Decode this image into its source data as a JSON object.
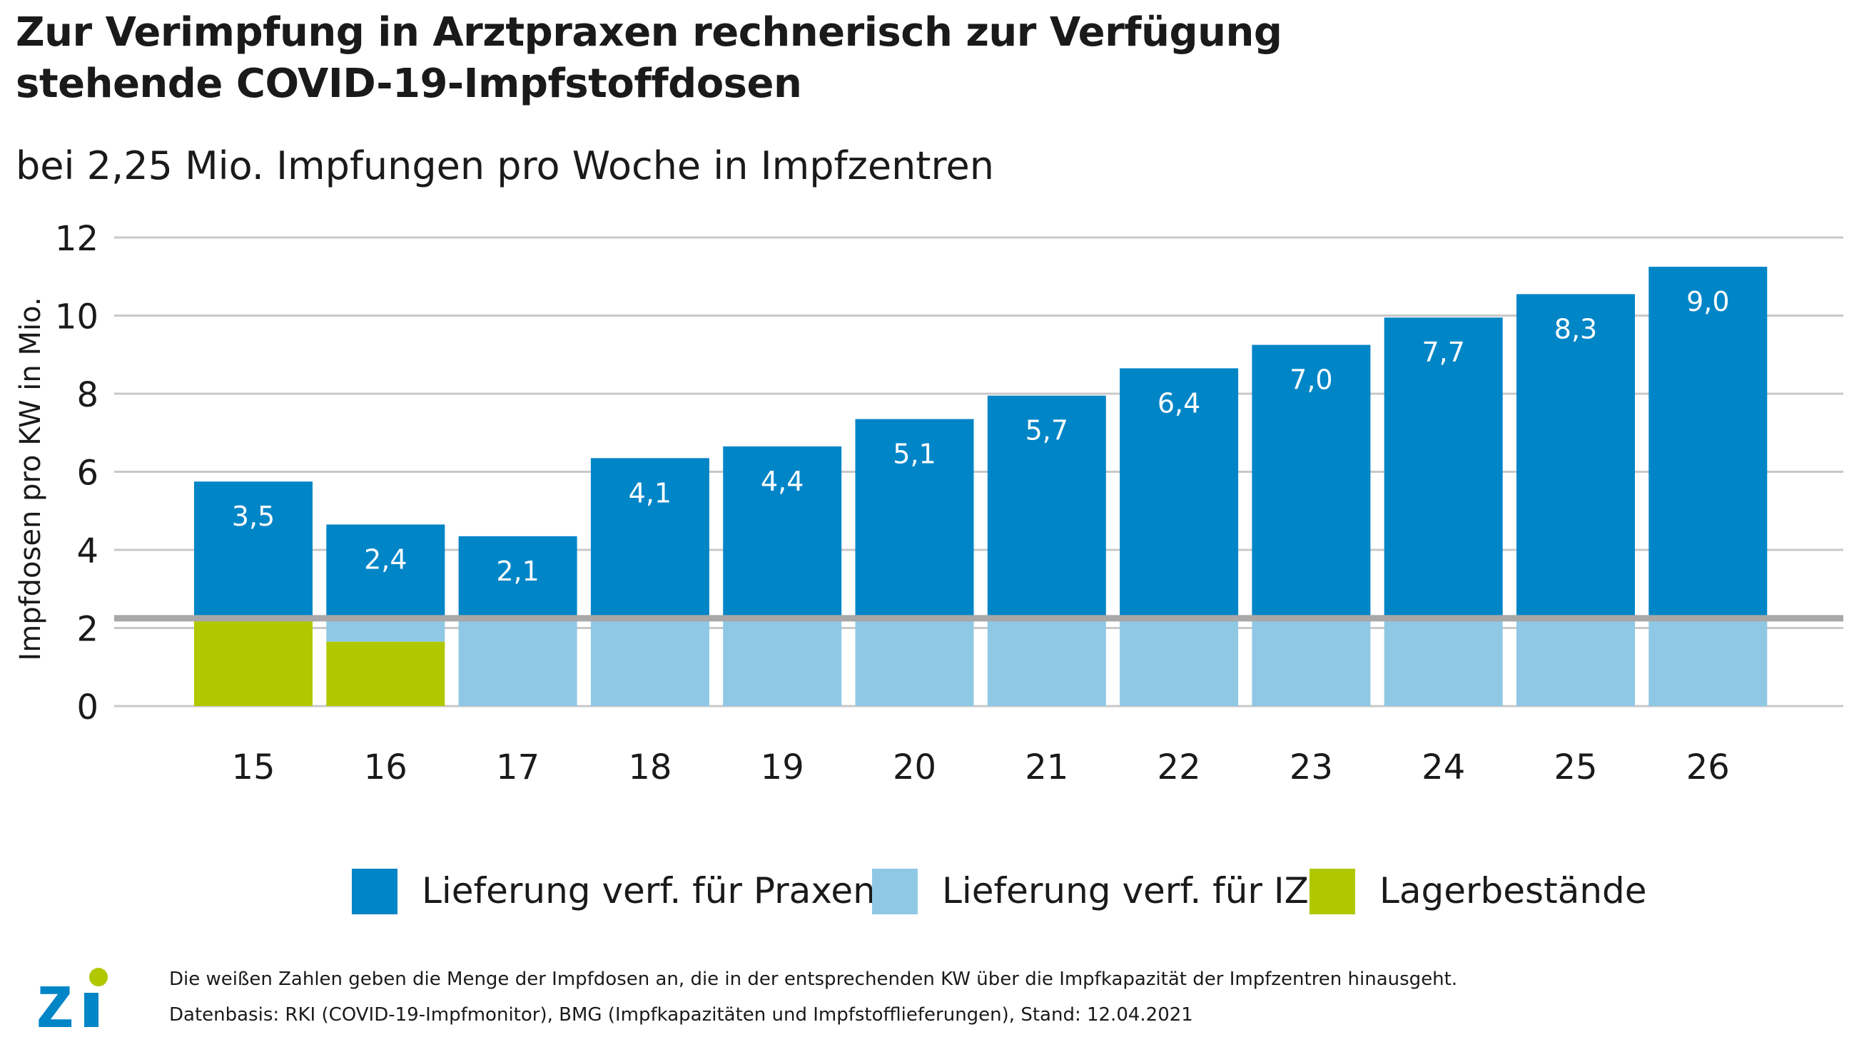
{
  "title_line1": "Zur Verimpfung in Arztpraxen rechnerisch zur Verfügung",
  "title_line2": "stehende COVID-19-Impfstoffdosen",
  "subtitle": "bei 2,25 Mio. Impfungen pro Woche in Impfzentren",
  "footnote1": "Die weißen Zahlen geben die Menge der Impfdosen an, die in der entsprechenden KW über die Impfkapazität der Impfzentren hinausgeht.",
  "footnote2": "Datenbasis: RKI (COVID-19-Impfmonitor), BMG (Impfkapazitäten und Impfstofflieferungen), Stand: 12.04.2021",
  "logo_text": "zi",
  "colors": {
    "praxen": "#0085c7",
    "iz": "#8fc8e4",
    "lager": "#b1c800",
    "grid": "#c8c8c8",
    "threshold": "#a8a8a8",
    "logo_blue": "#0085c7",
    "logo_green": "#b1c800"
  },
  "chart_data": {
    "type": "bar",
    "stacked": true,
    "title": "Zur Verimpfung in Arztpraxen rechnerisch zur Verfügung stehende COVID-19-Impfstoffdosen",
    "subtitle": "bei 2,25 Mio. Impfungen pro Woche in Impfzentren",
    "xlabel": "",
    "ylabel": "Impfdosen pro KW in Mio.",
    "ylim": [
      0,
      12
    ],
    "yticks": [
      0,
      2,
      4,
      6,
      8,
      10,
      12
    ],
    "grid": true,
    "legend_position": "bottom",
    "threshold": 2.25,
    "categories": [
      "15",
      "16",
      "17",
      "18",
      "19",
      "20",
      "21",
      "22",
      "23",
      "24",
      "25",
      "26"
    ],
    "series": [
      {
        "name": "Lieferung verf. für Praxen",
        "values": [
          3.5,
          2.4,
          2.1,
          4.1,
          4.4,
          5.1,
          5.7,
          6.4,
          7.0,
          7.7,
          8.3,
          9.0
        ]
      },
      {
        "name": "Lieferung verf. für IZ",
        "values": [
          0,
          0.6,
          2.25,
          2.25,
          2.25,
          2.25,
          2.25,
          2.25,
          2.25,
          2.25,
          2.25,
          2.25
        ]
      },
      {
        "name": "Lagerbestände",
        "values": [
          2.25,
          1.65,
          0,
          0,
          0,
          0,
          0,
          0,
          0,
          0,
          0,
          0
        ]
      }
    ],
    "data_labels": [
      "3,5",
      "2,4",
      "2,1",
      "4,1",
      "4,4",
      "5,1",
      "5,7",
      "6,4",
      "7,0",
      "7,7",
      "8,3",
      "9,0"
    ]
  }
}
